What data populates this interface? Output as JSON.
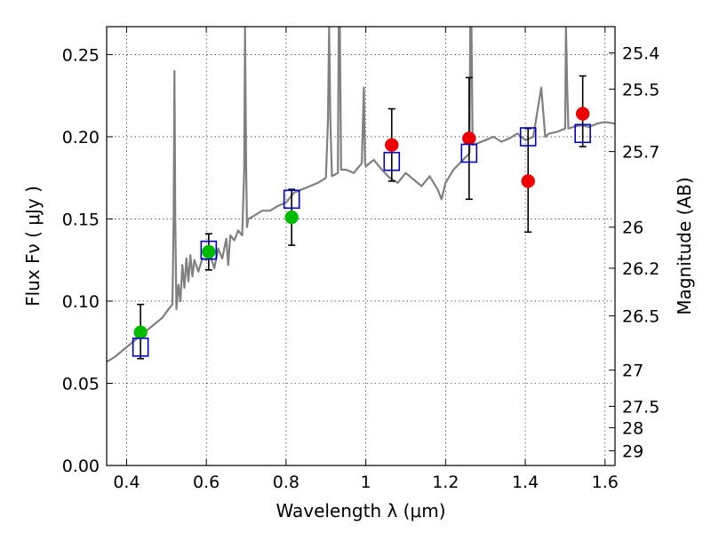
{
  "chart_data": {
    "type": "scatter",
    "xlabel": "Wavelength  λ (μm)",
    "ylabel": "Flux  Fν  ( μJy )",
    "ylabel2": "Magnitude (AB)",
    "xlim": [
      0.35,
      1.625
    ],
    "ylim": [
      0.0,
      0.267
    ],
    "x_ticks": [
      0.4,
      0.6,
      0.8,
      1.0,
      1.2,
      1.4,
      1.6
    ],
    "x_tick_labels": [
      "0.4",
      "0.6",
      "0.8",
      "1",
      "1.2",
      "1.4",
      "1.6"
    ],
    "y_ticks": [
      0.0,
      0.05,
      0.1,
      0.15,
      0.2,
      0.25
    ],
    "y_tick_labels": [
      "0.00",
      "0.05",
      "0.10",
      "0.15",
      "0.20",
      "0.25"
    ],
    "magnitude_ticks": [
      {
        "label": "25.4",
        "flux": 0.251
      },
      {
        "label": "25.5",
        "flux": 0.229
      },
      {
        "label": "25.7",
        "flux": 0.191
      },
      {
        "label": "26",
        "flux": 0.145
      },
      {
        "label": "26.2",
        "flux": 0.12
      },
      {
        "label": "26.5",
        "flux": 0.091
      },
      {
        "label": "27",
        "flux": 0.058
      },
      {
        "label": "27.5",
        "flux": 0.036
      },
      {
        "label": "28",
        "flux": 0.023
      },
      {
        "label": "29",
        "flux": 0.009
      }
    ],
    "grid": true,
    "colors": {
      "template": "#808080",
      "green": "#00bb00",
      "red": "#ee0000",
      "model": "#0000cc",
      "errorbar": "#000000"
    },
    "series": [
      {
        "name": "green-points",
        "marker": "circle",
        "color": "#00bb00",
        "x": [
          0.435,
          0.606,
          0.814
        ],
        "y": [
          0.081,
          0.13,
          0.151
        ]
      },
      {
        "name": "red-points",
        "marker": "circle",
        "color": "#ee0000",
        "x": [
          1.065,
          1.259,
          1.407,
          1.544
        ],
        "y": [
          0.195,
          0.199,
          0.173,
          0.214
        ]
      },
      {
        "name": "model-squares",
        "marker": "square",
        "color": "#0000cc",
        "x": [
          0.435,
          0.606,
          0.814,
          1.065,
          1.259,
          1.407,
          1.544
        ],
        "y": [
          0.072,
          0.131,
          0.162,
          0.185,
          0.19,
          0.2,
          0.202
        ]
      }
    ],
    "errorbars": [
      {
        "x": 0.435,
        "low": 0.065,
        "high": 0.098
      },
      {
        "x": 0.606,
        "low": 0.119,
        "high": 0.141
      },
      {
        "x": 0.814,
        "low": 0.134,
        "high": 0.168
      },
      {
        "x": 1.065,
        "low": 0.173,
        "high": 0.217
      },
      {
        "x": 1.259,
        "low": 0.162,
        "high": 0.236
      },
      {
        "x": 1.407,
        "low": 0.142,
        "high": 0.205
      },
      {
        "x": 1.544,
        "low": 0.194,
        "high": 0.237
      }
    ],
    "template_spectrum": {
      "x": [
        0.35,
        0.37,
        0.39,
        0.41,
        0.43,
        0.45,
        0.47,
        0.49,
        0.505,
        0.515,
        0.518,
        0.52,
        0.522,
        0.525,
        0.53,
        0.535,
        0.54,
        0.545,
        0.55,
        0.555,
        0.56,
        0.565,
        0.57,
        0.58,
        0.59,
        0.6,
        0.61,
        0.62,
        0.63,
        0.64,
        0.65,
        0.655,
        0.66,
        0.67,
        0.68,
        0.69,
        0.695,
        0.697,
        0.7,
        0.702,
        0.705,
        0.72,
        0.74,
        0.76,
        0.78,
        0.8,
        0.82,
        0.84,
        0.86,
        0.88,
        0.9,
        0.905,
        0.908,
        0.911,
        0.915,
        0.93,
        0.932,
        0.935,
        0.938,
        0.95,
        0.97,
        0.99,
        0.995,
        0.998,
        1.0,
        1.02,
        1.04,
        1.06,
        1.08,
        1.1,
        1.12,
        1.14,
        1.16,
        1.18,
        1.19,
        1.2,
        1.21,
        1.22,
        1.24,
        1.26,
        1.262,
        1.265,
        1.268,
        1.28,
        1.3,
        1.32,
        1.34,
        1.36,
        1.38,
        1.4,
        1.42,
        1.44,
        1.45,
        1.46,
        1.48,
        1.5,
        1.502,
        1.505,
        1.508,
        1.52,
        1.54,
        1.56,
        1.58,
        1.6,
        1.625
      ],
      "y": [
        0.063,
        0.066,
        0.07,
        0.074,
        0.078,
        0.082,
        0.086,
        0.09,
        0.095,
        0.098,
        0.15,
        0.24,
        0.15,
        0.095,
        0.11,
        0.1,
        0.122,
        0.108,
        0.126,
        0.112,
        0.128,
        0.115,
        0.125,
        0.118,
        0.126,
        0.125,
        0.128,
        0.12,
        0.132,
        0.126,
        0.138,
        0.122,
        0.14,
        0.137,
        0.143,
        0.14,
        0.18,
        0.267,
        0.18,
        0.145,
        0.15,
        0.152,
        0.155,
        0.155,
        0.158,
        0.16,
        0.166,
        0.168,
        0.17,
        0.172,
        0.175,
        0.21,
        0.267,
        0.21,
        0.176,
        0.178,
        0.267,
        0.267,
        0.18,
        0.18,
        0.178,
        0.184,
        0.23,
        0.185,
        0.182,
        0.186,
        0.18,
        0.175,
        0.172,
        0.178,
        0.174,
        0.17,
        0.176,
        0.168,
        0.162,
        0.172,
        0.176,
        0.18,
        0.185,
        0.19,
        0.267,
        0.267,
        0.195,
        0.196,
        0.198,
        0.2,
        0.197,
        0.199,
        0.202,
        0.198,
        0.2,
        0.23,
        0.2,
        0.202,
        0.203,
        0.205,
        0.267,
        0.23,
        0.205,
        0.206,
        0.207,
        0.206,
        0.208,
        0.209,
        0.208
      ]
    }
  }
}
